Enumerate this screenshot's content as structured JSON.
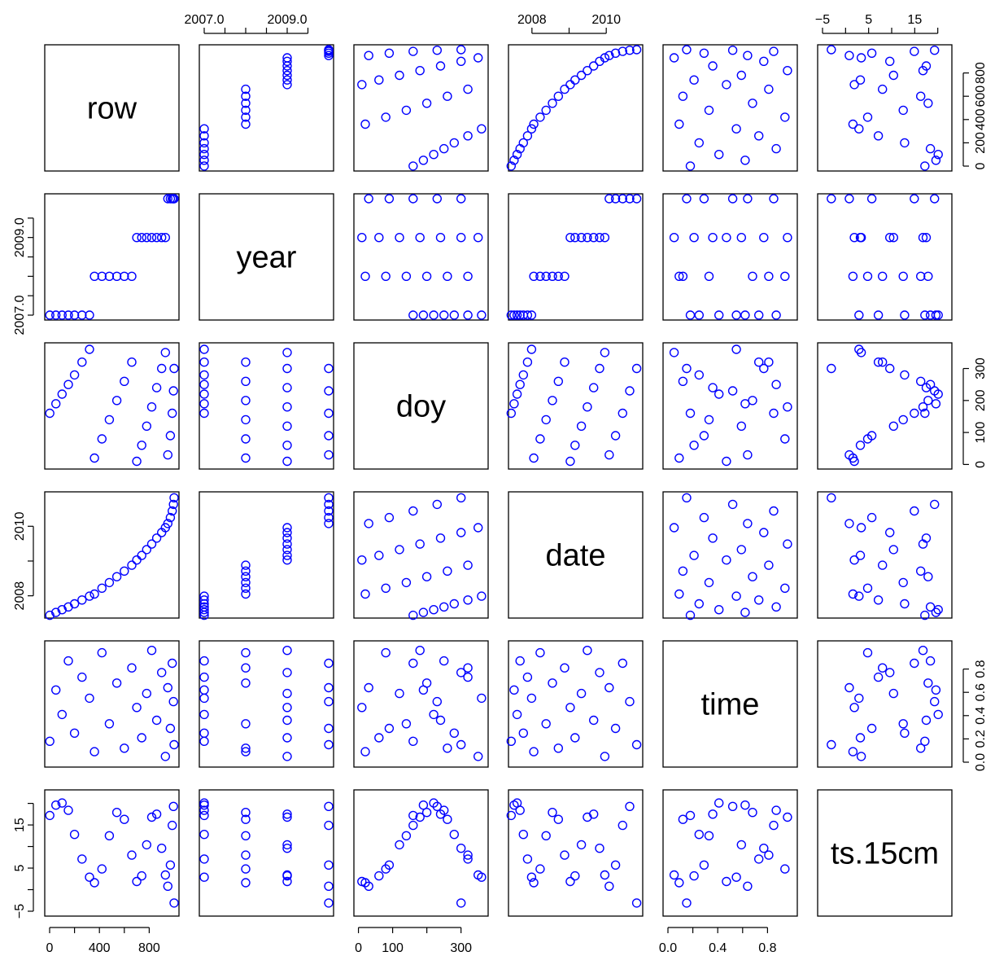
{
  "chart_data": {
    "type": "scatter",
    "plot_kind": "scatterplot-matrix",
    "point_symbol": "open-circle",
    "point_color": "#0000FF",
    "variables": [
      "row",
      "year",
      "doy",
      "date",
      "time",
      "ts.15cm"
    ],
    "ranges": {
      "row": [
        0,
        1000
      ],
      "year": [
        2007,
        2010
      ],
      "doy": [
        1,
        365
      ],
      "date": [
        2007.5,
        2010.85
      ],
      "time": [
        0,
        1
      ],
      "ts.15cm": [
        -5,
        22
      ]
    },
    "ticks": {
      "row": [
        0,
        200,
        400,
        600,
        800
      ],
      "year": [
        2007.0,
        2007.5,
        2008.0,
        2008.5,
        2009.0,
        2009.5
      ],
      "doy": [
        0,
        100,
        200,
        300
      ],
      "date": [
        2008,
        2009,
        2010
      ],
      "time": [
        0.0,
        0.2,
        0.4,
        0.6,
        0.8
      ],
      "ts.15cm": [
        -5,
        0,
        5,
        10,
        15,
        20
      ]
    },
    "tick_labels": {
      "top": [
        {
          "var": "year",
          "labels": [
            "2007.0",
            "2009.0"
          ]
        },
        {
          "var": "date",
          "labels": [
            "2008",
            "2010"
          ]
        },
        {
          "var": "ts.15cm",
          "labels": [
            "−5",
            "5",
            "15"
          ]
        }
      ],
      "bottom": [
        {
          "var": "row",
          "labels": [
            "0",
            "400",
            "800"
          ]
        },
        {
          "var": "doy",
          "labels": [
            "0",
            "100",
            "300"
          ]
        },
        {
          "var": "time",
          "labels": [
            "0.0",
            "0.4",
            "0.8"
          ]
        }
      ],
      "left": [
        {
          "var": "year",
          "labels": [
            "2007.0",
            "2009.0"
          ]
        },
        {
          "var": "date",
          "labels": [
            "2008",
            "2010"
          ]
        },
        {
          "var": "ts.15cm",
          "labels": [
            "−5",
            "5",
            "15"
          ]
        }
      ],
      "right": [
        {
          "var": "row",
          "labels": [
            "0",
            "200",
            "400",
            "600",
            "800"
          ]
        },
        {
          "var": "doy",
          "labels": [
            "0",
            "100",
            "200",
            "300"
          ]
        },
        {
          "var": "time",
          "labels": [
            "0.0",
            "0.2",
            "0.4",
            "0.6",
            "0.8"
          ]
        }
      ]
    },
    "records": [
      {
        "row": 1,
        "year": 2007,
        "doy": 160,
        "date": 2007.44,
        "time": 0.18,
        "ts.15cm": 17.2
      },
      {
        "row": 50,
        "year": 2007,
        "doy": 190,
        "date": 2007.52,
        "time": 0.62,
        "ts.15cm": 19.6
      },
      {
        "row": 100,
        "year": 2007,
        "doy": 220,
        "date": 2007.6,
        "time": 0.41,
        "ts.15cm": 20.1
      },
      {
        "row": 150,
        "year": 2007,
        "doy": 250,
        "date": 2007.68,
        "time": 0.87,
        "ts.15cm": 18.4
      },
      {
        "row": 200,
        "year": 2007,
        "doy": 280,
        "date": 2007.77,
        "time": 0.25,
        "ts.15cm": 12.8
      },
      {
        "row": 260,
        "year": 2007,
        "doy": 320,
        "date": 2007.88,
        "time": 0.73,
        "ts.15cm": 7.1
      },
      {
        "row": 320,
        "year": 2007,
        "doy": 360,
        "date": 2007.99,
        "time": 0.55,
        "ts.15cm": 2.9
      },
      {
        "row": 360,
        "year": 2008,
        "doy": 20,
        "date": 2008.05,
        "time": 0.09,
        "ts.15cm": 1.6
      },
      {
        "row": 420,
        "year": 2008,
        "doy": 80,
        "date": 2008.22,
        "time": 0.94,
        "ts.15cm": 4.8
      },
      {
        "row": 480,
        "year": 2008,
        "doy": 140,
        "date": 2008.38,
        "time": 0.33,
        "ts.15cm": 12.5
      },
      {
        "row": 540,
        "year": 2008,
        "doy": 200,
        "date": 2008.55,
        "time": 0.68,
        "ts.15cm": 17.9
      },
      {
        "row": 600,
        "year": 2008,
        "doy": 260,
        "date": 2008.71,
        "time": 0.12,
        "ts.15cm": 16.3
      },
      {
        "row": 660,
        "year": 2008,
        "doy": 320,
        "date": 2008.88,
        "time": 0.81,
        "ts.15cm": 8.0
      },
      {
        "row": 700,
        "year": 2009,
        "doy": 10,
        "date": 2009.03,
        "time": 0.47,
        "ts.15cm": 1.9
      },
      {
        "row": 740,
        "year": 2009,
        "doy": 60,
        "date": 2009.16,
        "time": 0.21,
        "ts.15cm": 3.2
      },
      {
        "row": 780,
        "year": 2009,
        "doy": 120,
        "date": 2009.33,
        "time": 0.59,
        "ts.15cm": 10.4
      },
      {
        "row": 820,
        "year": 2009,
        "doy": 180,
        "date": 2009.49,
        "time": 0.96,
        "ts.15cm": 16.8
      },
      {
        "row": 860,
        "year": 2009,
        "doy": 240,
        "date": 2009.66,
        "time": 0.36,
        "ts.15cm": 17.5
      },
      {
        "row": 900,
        "year": 2009,
        "doy": 300,
        "date": 2009.82,
        "time": 0.77,
        "ts.15cm": 9.6
      },
      {
        "row": 930,
        "year": 2009,
        "doy": 350,
        "date": 2009.96,
        "time": 0.05,
        "ts.15cm": 3.4
      },
      {
        "row": 950,
        "year": 2010,
        "doy": 30,
        "date": 2010.08,
        "time": 0.64,
        "ts.15cm": 0.8
      },
      {
        "row": 970,
        "year": 2010,
        "doy": 90,
        "date": 2010.25,
        "time": 0.29,
        "ts.15cm": 5.7
      },
      {
        "row": 985,
        "year": 2010,
        "doy": 160,
        "date": 2010.44,
        "time": 0.85,
        "ts.15cm": 14.9
      },
      {
        "row": 995,
        "year": 2010,
        "doy": 230,
        "date": 2010.63,
        "time": 0.52,
        "ts.15cm": 19.3
      },
      {
        "row": 1000,
        "year": 2010,
        "doy": 300,
        "date": 2010.82,
        "time": 0.15,
        "ts.15cm": -3.1
      }
    ]
  }
}
